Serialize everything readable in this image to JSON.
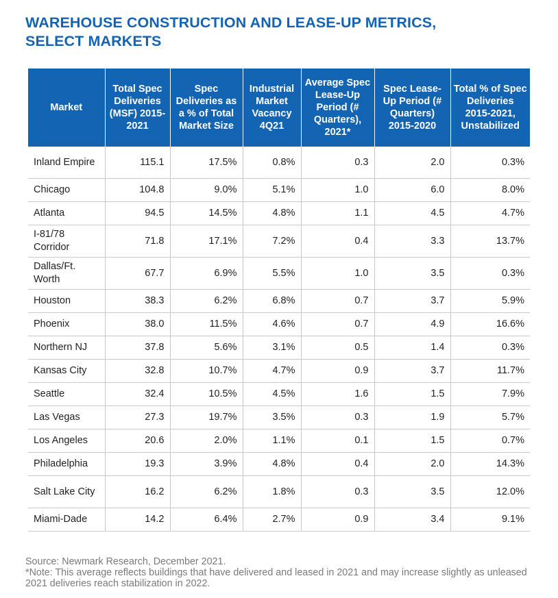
{
  "title_line1": "WAREHOUSE CONSTRUCTION AND LEASE-UP METRICS,",
  "title_line2": "SELECT MARKETS",
  "columns": [
    "Market",
    "Total Spec Deliveries (MSF) 2015-2021",
    "Spec Deliveries as a % of Total Market Size",
    "Industrial Market Vacancy 4Q21",
    "Average Spec Lease-Up Period (# Quarters), 2021*",
    "Spec Lease-Up Period (# Quarters) 2015-2020",
    "Total % of Spec Deliveries 2015-2021, Unstabilized"
  ],
  "rows": [
    [
      "Inland Empire",
      "115.1",
      "17.5%",
      "0.8%",
      "0.3",
      "2.0",
      "0.3%"
    ],
    [
      "Chicago",
      "104.8",
      "9.0%",
      "5.1%",
      "1.0",
      "6.0",
      "8.0%"
    ],
    [
      "Atlanta",
      "94.5",
      "14.5%",
      "4.8%",
      "1.1",
      "4.5",
      "4.7%"
    ],
    [
      "I-81/78 Corridor",
      "71.8",
      "17.1%",
      "7.2%",
      "0.4",
      "3.3",
      "13.7%"
    ],
    [
      "Dallas/Ft. Worth",
      "67.7",
      "6.9%",
      "5.5%",
      "1.0",
      "3.5",
      "0.3%"
    ],
    [
      "Houston",
      "38.3",
      "6.2%",
      "6.8%",
      "0.7",
      "3.7",
      "5.9%"
    ],
    [
      "Phoenix",
      "38.0",
      "11.5%",
      "4.6%",
      "0.7",
      "4.9",
      "16.6%"
    ],
    [
      "Northern NJ",
      "37.8",
      "5.6%",
      "3.1%",
      "0.5",
      "1.4",
      "0.3%"
    ],
    [
      "Kansas City",
      "32.8",
      "10.7%",
      "4.7%",
      "0.9",
      "3.7",
      "11.7%"
    ],
    [
      "Seattle",
      "32.4",
      "10.5%",
      "4.5%",
      "1.6",
      "1.5",
      "7.9%"
    ],
    [
      "Las Vegas",
      "27.3",
      "19.7%",
      "3.5%",
      "0.3",
      "1.9",
      "5.7%"
    ],
    [
      "Los Angeles",
      "20.6",
      "2.0%",
      "1.1%",
      "0.1",
      "1.5",
      "0.7%"
    ],
    [
      "Philadelphia",
      "19.3",
      "3.9%",
      "4.8%",
      "0.4",
      "2.0",
      "14.3%"
    ],
    [
      "Salt Lake City",
      "16.2",
      "6.2%",
      "1.8%",
      "0.3",
      "3.5",
      "12.0%"
    ],
    [
      "Miami-Dade",
      "14.2",
      "6.4%",
      "2.7%",
      "0.9",
      "3.4",
      "9.1%"
    ]
  ],
  "footer": {
    "source": "Source: Newmark Research, December 2021.",
    "note": "*Note: This average reflects buildings that have delivered and leased in 2021 and may increase slightly as unleased 2021 deliveries reach stabilization in 2022."
  },
  "colors": {
    "accent": "#1464b4",
    "rule": "#c8c8c8",
    "footer_text": "#7a7a7a"
  }
}
